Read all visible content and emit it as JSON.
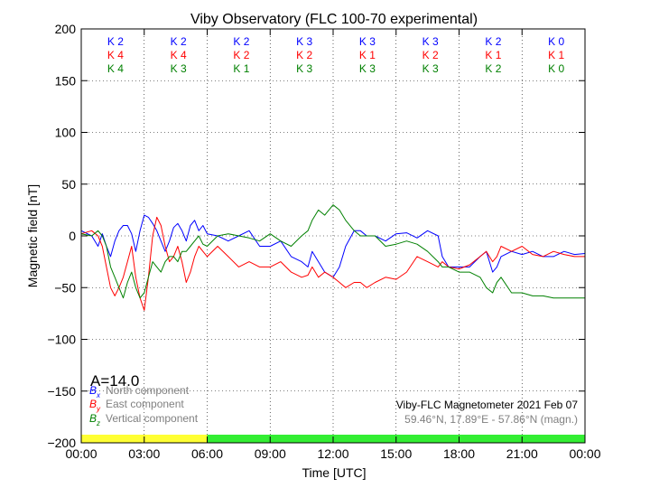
{
  "chart_data": {
    "type": "line",
    "title": "Viby Observatory (FLC 100-70 experimental)",
    "xlabel": "Time [UTC]",
    "ylabel": "Magnetic field [nT]",
    "xlim": [
      0,
      24
    ],
    "ylim": [
      -200,
      200
    ],
    "x_ticks": [
      0,
      3,
      6,
      9,
      12,
      15,
      18,
      21,
      24
    ],
    "x_tick_labels": [
      "00:00",
      "03:00",
      "06:00",
      "09:00",
      "12:00",
      "15:00",
      "18:00",
      "21:00",
      "00:00"
    ],
    "y_ticks": [
      -200,
      -150,
      -100,
      -50,
      0,
      50,
      100,
      150,
      200
    ],
    "grid": true,
    "activity_index": "A=14.0",
    "legend": {
      "position": "bottom-left",
      "entries": [
        {
          "symbol": "B",
          "subscript": "x",
          "label": "North component",
          "color": "#0000ff"
        },
        {
          "symbol": "B",
          "subscript": "y",
          "label": "East component",
          "color": "#ff0000"
        },
        {
          "symbol": "B",
          "subscript": "z",
          "label": "Vertical component",
          "color": "#008000"
        }
      ]
    },
    "info_line1": "Viby-FLC Magnetometer 2021 Feb 07",
    "info_line2": "59.46°N, 17.89°E - 57.86°N (magn.)",
    "k_index": {
      "columns": [
        1.5,
        4.5,
        7.5,
        10.5,
        13.5,
        16.5,
        19.5,
        22.5
      ],
      "rows": [
        {
          "component": "North",
          "color": "#0000ff",
          "labels": [
            "K 2",
            "K 2",
            "K 2",
            "K 3",
            "K 3",
            "K 3",
            "K 2",
            "K 0"
          ]
        },
        {
          "component": "East",
          "color": "#ff0000",
          "labels": [
            "K 4",
            "K 4",
            "K 2",
            "K 2",
            "K 1",
            "K 2",
            "K 1",
            "K 1"
          ]
        },
        {
          "component": "Vertical",
          "color": "#008000",
          "labels": [
            "K 4",
            "K 3",
            "K 1",
            "K 3",
            "K 3",
            "K 3",
            "K 2",
            "K 0"
          ]
        }
      ]
    },
    "status_bar": [
      {
        "from": 0,
        "to": 6,
        "color": "#ffff33"
      },
      {
        "from": 6,
        "to": 24,
        "color": "#33ee33"
      }
    ],
    "series": [
      {
        "name": "North component",
        "color": "#0000ff",
        "x": [
          0,
          0.5,
          0.8,
          1.0,
          1.2,
          1.4,
          1.6,
          1.8,
          2.0,
          2.2,
          2.4,
          2.6,
          2.8,
          3.0,
          3.2,
          3.4,
          3.6,
          3.8,
          4.0,
          4.2,
          4.4,
          4.6,
          4.8,
          5.0,
          5.2,
          5.4,
          5.6,
          5.8,
          6.0,
          6.5,
          7.0,
          7.5,
          8.0,
          8.5,
          9.0,
          9.5,
          10.0,
          10.5,
          10.8,
          11.0,
          11.3,
          11.6,
          12.0,
          12.3,
          12.6,
          13.0,
          13.3,
          13.6,
          14.0,
          14.5,
          15.0,
          15.5,
          16.0,
          16.5,
          17.0,
          17.2,
          17.5,
          18.0,
          18.5,
          19.0,
          19.3,
          19.6,
          19.8,
          20.0,
          20.5,
          21.0,
          21.5,
          22.0,
          22.5,
          23.0,
          23.5,
          24.0
        ],
        "y": [
          5,
          0,
          -10,
          2,
          -10,
          -20,
          -5,
          5,
          10,
          10,
          2,
          -15,
          5,
          20,
          18,
          12,
          5,
          -5,
          -15,
          -5,
          8,
          12,
          5,
          -5,
          10,
          15,
          5,
          10,
          2,
          0,
          -5,
          0,
          5,
          -10,
          -10,
          -5,
          -20,
          -25,
          -30,
          -15,
          -25,
          -35,
          -40,
          -30,
          -10,
          5,
          5,
          0,
          0,
          -5,
          2,
          3,
          -2,
          5,
          0,
          -20,
          -30,
          -30,
          -30,
          -20,
          -15,
          -35,
          -30,
          -20,
          -15,
          -18,
          -15,
          -20,
          -20,
          -15,
          -18,
          -17
        ]
      },
      {
        "name": "East component",
        "color": "#ff0000",
        "x": [
          0,
          0.5,
          0.8,
          1.0,
          1.2,
          1.4,
          1.6,
          1.8,
          2.0,
          2.2,
          2.4,
          2.6,
          2.8,
          3.0,
          3.2,
          3.4,
          3.6,
          3.8,
          4.0,
          4.2,
          4.4,
          4.6,
          4.8,
          5.0,
          5.2,
          5.4,
          5.6,
          5.8,
          6.0,
          6.5,
          7.0,
          7.5,
          8.0,
          8.5,
          9.0,
          9.5,
          10.0,
          10.5,
          10.8,
          11.0,
          11.3,
          11.6,
          12.0,
          12.3,
          12.6,
          13.0,
          13.3,
          13.6,
          14.0,
          14.5,
          15.0,
          15.5,
          16.0,
          16.5,
          17.0,
          17.2,
          17.5,
          18.0,
          18.5,
          19.0,
          19.3,
          19.6,
          19.8,
          20.0,
          20.5,
          21.0,
          21.5,
          22.0,
          22.5,
          23.0,
          23.5,
          24.0
        ],
        "y": [
          2,
          5,
          0,
          -10,
          -30,
          -50,
          -58,
          -50,
          -40,
          -25,
          -10,
          -40,
          -60,
          -72,
          -40,
          0,
          18,
          10,
          -10,
          -25,
          -20,
          -10,
          -25,
          -45,
          -35,
          -20,
          -10,
          -15,
          -20,
          -10,
          -20,
          -30,
          -25,
          -30,
          -30,
          -25,
          -35,
          -40,
          -38,
          -30,
          -40,
          -35,
          -40,
          -45,
          -50,
          -45,
          -45,
          -50,
          -45,
          -40,
          -42,
          -35,
          -20,
          -25,
          -30,
          -25,
          -30,
          -32,
          -28,
          -20,
          -15,
          -25,
          -20,
          -10,
          -15,
          -10,
          -18,
          -20,
          -15,
          -18,
          -20,
          -20
        ]
      },
      {
        "name": "Vertical component",
        "color": "#008000",
        "x": [
          0,
          0.5,
          0.8,
          1.0,
          1.2,
          1.4,
          1.6,
          1.8,
          2.0,
          2.2,
          2.4,
          2.6,
          2.8,
          3.0,
          3.2,
          3.4,
          3.6,
          3.8,
          4.0,
          4.2,
          4.4,
          4.6,
          4.8,
          5.0,
          5.2,
          5.4,
          5.6,
          5.8,
          6.0,
          6.5,
          7.0,
          7.5,
          8.0,
          8.5,
          9.0,
          9.5,
          10.0,
          10.5,
          10.8,
          11.0,
          11.3,
          11.6,
          12.0,
          12.3,
          12.6,
          13.0,
          13.3,
          13.6,
          14.0,
          14.5,
          15.0,
          15.5,
          16.0,
          16.5,
          17.0,
          17.2,
          17.5,
          18.0,
          18.5,
          19.0,
          19.3,
          19.6,
          19.8,
          20.0,
          20.5,
          21.0,
          21.5,
          22.0,
          22.5,
          23.0,
          23.5,
          24.0
        ],
        "y": [
          2,
          0,
          5,
          0,
          -10,
          -30,
          -40,
          -50,
          -60,
          -45,
          -35,
          -50,
          -60,
          -55,
          -40,
          -25,
          -30,
          -35,
          -25,
          -20,
          -20,
          -25,
          -15,
          -15,
          -10,
          -5,
          0,
          -8,
          -10,
          0,
          2,
          0,
          -2,
          -5,
          2,
          -5,
          -10,
          0,
          5,
          15,
          25,
          20,
          30,
          25,
          15,
          5,
          0,
          0,
          0,
          -10,
          -8,
          -5,
          -8,
          -15,
          -25,
          -30,
          -30,
          -35,
          -35,
          -40,
          -50,
          -55,
          -45,
          -40,
          -55,
          -55,
          -58,
          -58,
          -60,
          -60,
          -60,
          -60
        ]
      }
    ]
  }
}
